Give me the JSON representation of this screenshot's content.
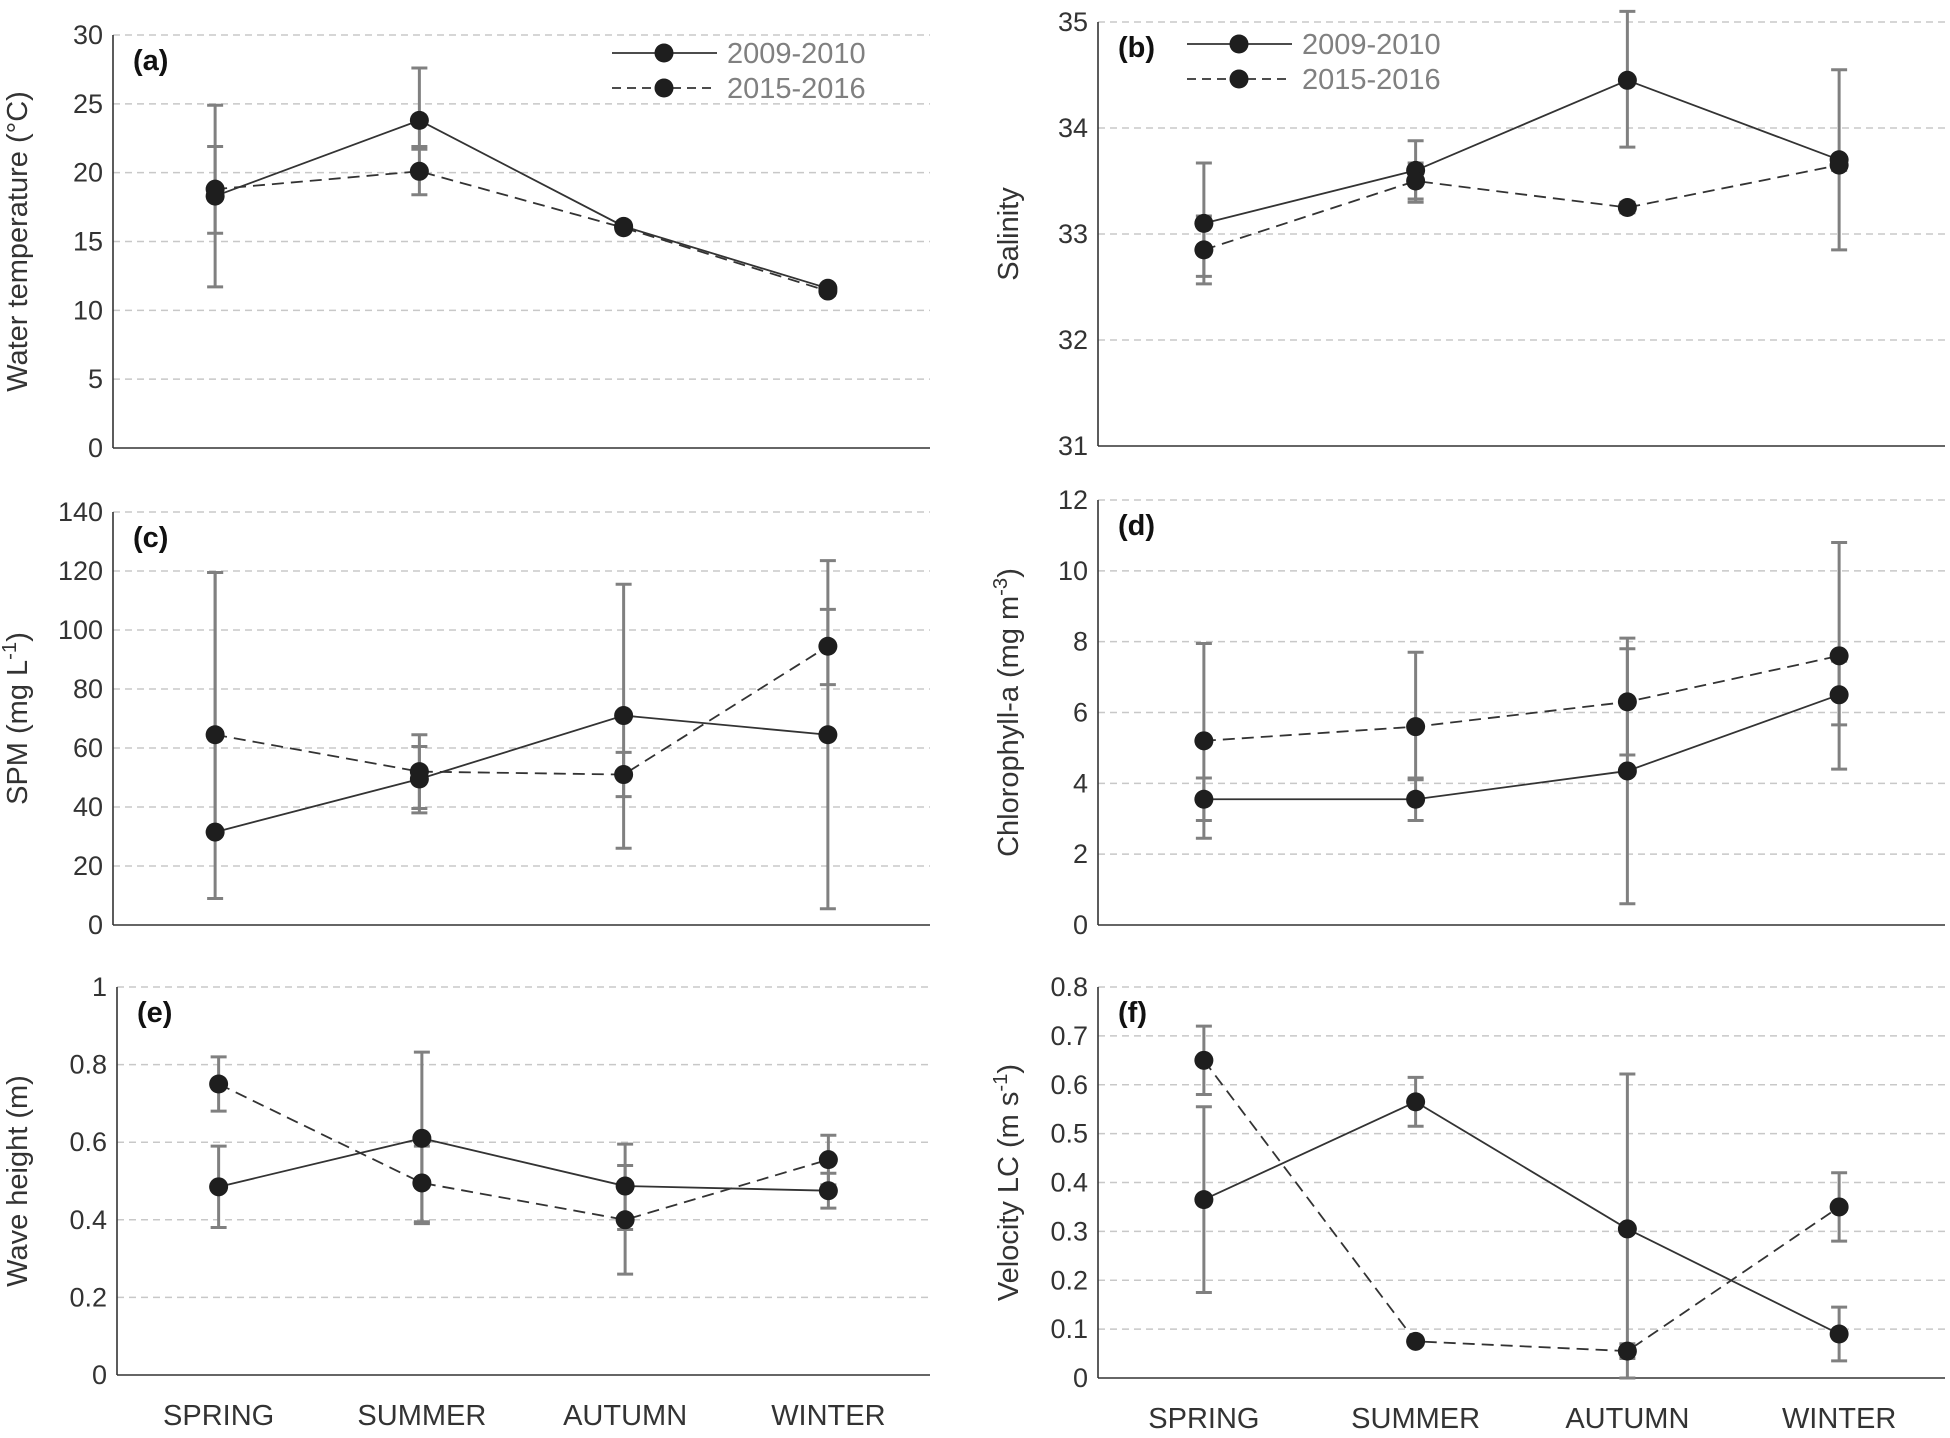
{
  "colors": {
    "axis": "#333333",
    "grid": "#c8c8c8",
    "error_bar": "#808080",
    "series_line": "#333333",
    "marker": "#1e1e1e",
    "legend_text": "#808080",
    "tick_text": "#333333"
  },
  "series_names": [
    "2009-2010",
    "2015-2016"
  ],
  "categories": [
    "SPRING",
    "SUMMER",
    "AUTUMN",
    "WINTER"
  ],
  "chart_data": [
    {
      "id": "a",
      "type": "line",
      "panel_label": "(a)",
      "ylabel": "Water temperature (°C)",
      "ylim": [
        0,
        30
      ],
      "yticks": [
        "0",
        "5",
        "10",
        "15",
        "20",
        "25",
        "30"
      ],
      "grid": true,
      "legend": "top-right",
      "categories": [
        "SPRING",
        "SUMMER",
        "AUTUMN",
        "WINTER"
      ],
      "series": [
        {
          "name": "2009-2010",
          "style": "solid",
          "values": [
            18.3,
            23.8,
            16.1,
            11.6
          ],
          "err_low": [
            11.7,
            21.7,
            15.8,
            11.3
          ],
          "err_high": [
            24.9,
            27.6,
            16.4,
            11.9
          ]
        },
        {
          "name": "2015-2016",
          "style": "dashed",
          "values": [
            18.8,
            20.1,
            16.0,
            11.4
          ],
          "err_low": [
            15.6,
            18.4,
            15.7,
            11.1
          ],
          "err_high": [
            21.9,
            21.9,
            16.3,
            11.8
          ]
        }
      ]
    },
    {
      "id": "b",
      "type": "line",
      "panel_label": "(b)",
      "ylabel": "Salinity",
      "ylim": [
        31,
        35
      ],
      "yticks": [
        "31",
        "32",
        "33",
        "34",
        "35"
      ],
      "grid": true,
      "legend": "top-left",
      "categories": [
        "SPRING",
        "SUMMER",
        "AUTUMN",
        "WINTER"
      ],
      "series": [
        {
          "name": "2009-2010",
          "style": "solid",
          "values": [
            33.1,
            33.6,
            34.45,
            33.7
          ],
          "err_low": [
            32.6,
            33.3,
            33.82,
            32.85
          ],
          "err_high": [
            33.67,
            33.88,
            35.1,
            34.55
          ]
        },
        {
          "name": "2015-2016",
          "style": "dashed",
          "values": [
            32.85,
            33.5,
            33.25,
            33.65
          ],
          "err_low": [
            32.53,
            33.33,
            33.2,
            33.6
          ],
          "err_high": [
            33.17,
            33.67,
            33.3,
            33.7
          ]
        }
      ]
    },
    {
      "id": "c",
      "type": "line",
      "panel_label": "(c)",
      "ylabel": "SPM (mg L⁻¹)",
      "ylim": [
        0,
        140
      ],
      "yticks": [
        "0",
        "20",
        "40",
        "60",
        "80",
        "100",
        "120",
        "140"
      ],
      "grid": true,
      "legend": "none",
      "categories": [
        "SPRING",
        "SUMMER",
        "AUTUMN",
        "WINTER"
      ],
      "series": [
        {
          "name": "2009-2010",
          "style": "solid",
          "values": [
            31.5,
            49.5,
            71,
            64.5
          ],
          "err_low": [
            9,
            38,
            26,
            5.5
          ],
          "err_high": [
            119.5,
            60.5,
            115.5,
            123.5
          ]
        },
        {
          "name": "2015-2016",
          "style": "dashed",
          "values": [
            64.5,
            52,
            51,
            94.5
          ],
          "err_low": [
            31.5,
            39.5,
            43.5,
            81.5
          ],
          "err_high": [
            119.5,
            64.5,
            58.5,
            107
          ]
        }
      ]
    },
    {
      "id": "d",
      "type": "line",
      "panel_label": "(d)",
      "ylabel": "Chlorophyll-a (mg m⁻³)",
      "ylim": [
        0,
        12
      ],
      "yticks": [
        "0",
        "2",
        "4",
        "6",
        "8",
        "10",
        "12"
      ],
      "grid": true,
      "legend": "none",
      "categories": [
        "SPRING",
        "SUMMER",
        "AUTUMN",
        "WINTER"
      ],
      "series": [
        {
          "name": "2009-2010",
          "style": "solid",
          "values": [
            3.55,
            3.55,
            4.35,
            6.5
          ],
          "err_low": [
            2.45,
            2.95,
            0.6,
            5.65
          ],
          "err_high": [
            4.15,
            4.15,
            8.1,
            7.45
          ]
        },
        {
          "name": "2015-2016",
          "style": "dashed",
          "values": [
            5.2,
            5.6,
            6.3,
            7.6
          ],
          "err_low": [
            2.95,
            4.1,
            4.8,
            4.4
          ],
          "err_high": [
            7.95,
            7.7,
            7.8,
            10.8
          ]
        }
      ]
    },
    {
      "id": "e",
      "type": "line",
      "panel_label": "(e)",
      "ylabel": "Wave height (m)",
      "ylim": [
        0,
        1
      ],
      "yticks": [
        "0",
        "0.2",
        "0.4",
        "0.6",
        "0.8",
        "1"
      ],
      "grid": true,
      "legend": "none",
      "categories": [
        "SPRING",
        "SUMMER",
        "AUTUMN",
        "WINTER"
      ],
      "series": [
        {
          "name": "2009-2010",
          "style": "solid",
          "values": [
            0.485,
            0.61,
            0.487,
            0.475
          ],
          "err_low": [
            0.38,
            0.39,
            0.375,
            0.43
          ],
          "err_high": [
            0.59,
            0.832,
            0.595,
            0.52
          ]
        },
        {
          "name": "2015-2016",
          "style": "dashed",
          "values": [
            0.75,
            0.495,
            0.4,
            0.555
          ],
          "err_low": [
            0.68,
            0.395,
            0.26,
            0.49
          ],
          "err_high": [
            0.82,
            0.59,
            0.54,
            0.618
          ]
        }
      ]
    },
    {
      "id": "f",
      "type": "line",
      "panel_label": "(f)",
      "ylabel": "Velocity LC (m s⁻¹)",
      "ylim": [
        0,
        0.8
      ],
      "yticks": [
        "0",
        "0.1",
        "0.2",
        "0.3",
        "0.4",
        "0.5",
        "0.6",
        "0.7",
        "0.8"
      ],
      "grid": true,
      "legend": "none",
      "categories": [
        "SPRING",
        "SUMMER",
        "AUTUMN",
        "WINTER"
      ],
      "series": [
        {
          "name": "2009-2010",
          "style": "solid",
          "values": [
            0.365,
            0.565,
            0.305,
            0.09
          ],
          "err_low": [
            0.175,
            0.515,
            0.0,
            0.035
          ],
          "err_high": [
            0.555,
            0.615,
            0.622,
            0.145
          ]
        },
        {
          "name": "2015-2016",
          "style": "dashed",
          "values": [
            0.65,
            0.075,
            0.055,
            0.35
          ],
          "err_low": [
            0.58,
            0.075,
            0.04,
            0.28
          ],
          "err_high": [
            0.72,
            0.075,
            0.07,
            0.42
          ]
        }
      ]
    }
  ]
}
